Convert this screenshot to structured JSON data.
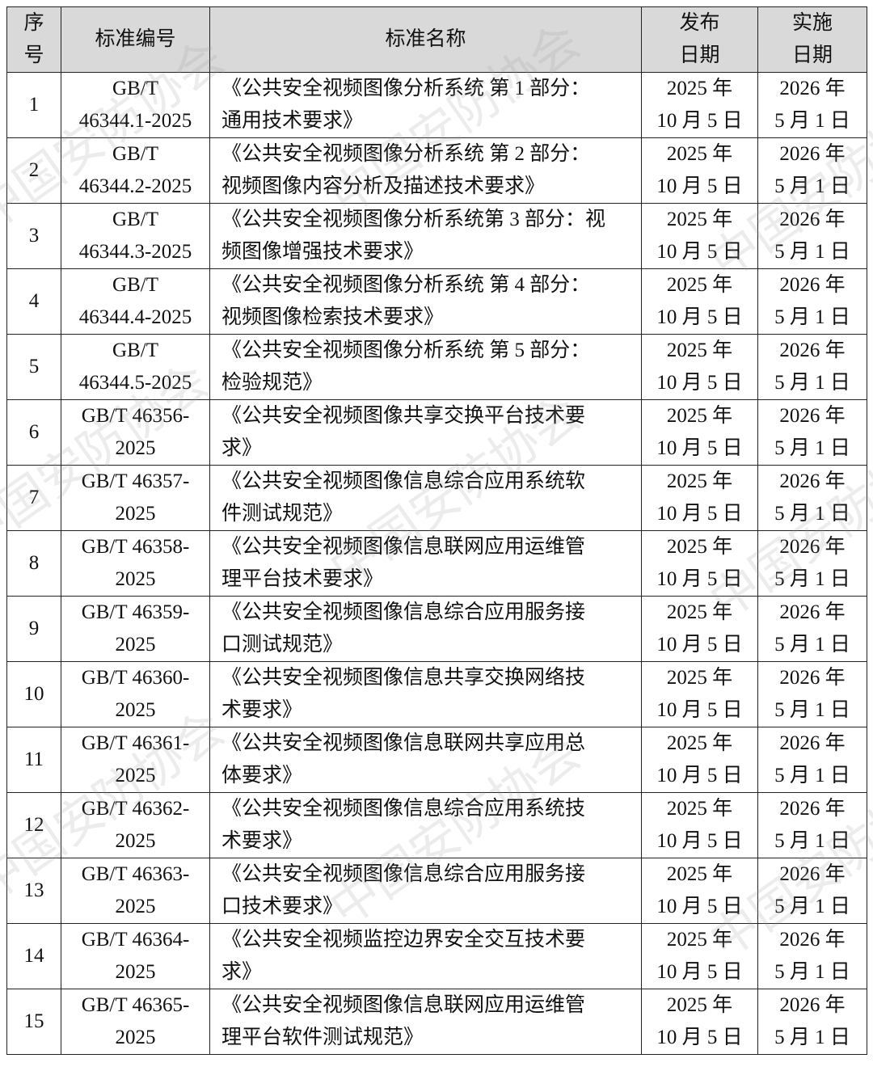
{
  "watermark": "中国安防协会",
  "header": {
    "index": [
      "序",
      "号"
    ],
    "code": "标准编号",
    "name": "标准名称",
    "publish": [
      "发布",
      "日期"
    ],
    "effective": [
      "实施",
      "日期"
    ]
  },
  "rows": [
    {
      "no": "1",
      "code": [
        "GB/T",
        "46344.1-2025"
      ],
      "name": [
        "《公共安全视频图像分析系统  第 1 部分：",
        "通用技术要求》"
      ],
      "publish": [
        "2025 年",
        "10 月 5 日"
      ],
      "effective": [
        "2026 年",
        "5 月 1 日"
      ]
    },
    {
      "no": "2",
      "code": [
        "GB/T",
        "46344.2-2025"
      ],
      "name": [
        "《公共安全视频图像分析系统  第 2 部分：",
        "视频图像内容分析及描述技术要求》"
      ],
      "publish": [
        "2025 年",
        "10 月 5 日"
      ],
      "effective": [
        "2026 年",
        "5 月 1 日"
      ]
    },
    {
      "no": "3",
      "code": [
        "GB/T",
        "46344.3-2025"
      ],
      "name": [
        "《公共安全视频图像分析系统第 3 部分：视",
        "频图像增强技术要求》"
      ],
      "publish": [
        "2025 年",
        "10 月 5 日"
      ],
      "effective": [
        "2026 年",
        "5 月 1 日"
      ]
    },
    {
      "no": "4",
      "code": [
        "GB/T",
        "46344.4-2025"
      ],
      "name": [
        "《公共安全视频图像分析系统  第 4 部分：",
        "视频图像检索技术要求》"
      ],
      "publish": [
        "2025 年",
        "10 月 5 日"
      ],
      "effective": [
        "2026 年",
        "5 月 1 日"
      ]
    },
    {
      "no": "5",
      "code": [
        "GB/T",
        "46344.5-2025"
      ],
      "name": [
        "《公共安全视频图像分析系统  第 5 部分：",
        "检验规范》"
      ],
      "publish": [
        "2025 年",
        "10 月 5 日"
      ],
      "effective": [
        "2026 年",
        "5 月 1 日"
      ]
    },
    {
      "no": "6",
      "code": [
        "GB/T 46356-",
        "2025"
      ],
      "name": [
        "《公共安全视频图像共享交换平台技术要",
        "求》"
      ],
      "publish": [
        "2025 年",
        "10 月 5 日"
      ],
      "effective": [
        "2026 年",
        "5 月 1 日"
      ]
    },
    {
      "no": "7",
      "code": [
        "GB/T 46357-",
        "2025"
      ],
      "name": [
        "《公共安全视频图像信息综合应用系统软",
        "件测试规范》"
      ],
      "publish": [
        "2025 年",
        "10 月 5 日"
      ],
      "effective": [
        "2026 年",
        "5 月 1 日"
      ]
    },
    {
      "no": "8",
      "code": [
        "GB/T 46358-",
        "2025"
      ],
      "name": [
        "《公共安全视频图像信息联网应用运维管",
        "理平台技术要求》"
      ],
      "publish": [
        "2025 年",
        "10 月 5 日"
      ],
      "effective": [
        "2026 年",
        "5 月 1 日"
      ]
    },
    {
      "no": "9",
      "code": [
        "GB/T 46359-",
        "2025"
      ],
      "name": [
        "《公共安全视频图像信息综合应用服务接",
        "口测试规范》"
      ],
      "publish": [
        "2025 年",
        "10 月 5 日"
      ],
      "effective": [
        "2026 年",
        "5 月 1 日"
      ]
    },
    {
      "no": "10",
      "code": [
        "GB/T 46360-",
        "2025"
      ],
      "name": [
        "《公共安全视频图像信息共享交换网络技",
        "术要求》"
      ],
      "publish": [
        "2025 年",
        "10 月 5 日"
      ],
      "effective": [
        "2026 年",
        "5 月 1 日"
      ]
    },
    {
      "no": "11",
      "code": [
        "GB/T 46361-",
        "2025"
      ],
      "name": [
        "《公共安全视频图像信息联网共享应用总",
        "体要求》"
      ],
      "publish": [
        "2025 年",
        "10 月 5 日"
      ],
      "effective": [
        "2026 年",
        "5 月 1 日"
      ]
    },
    {
      "no": "12",
      "code": [
        "GB/T 46362-",
        "2025"
      ],
      "name": [
        "《公共安全视频图像信息综合应用系统技",
        "术要求》"
      ],
      "publish": [
        "2025 年",
        "10 月 5 日"
      ],
      "effective": [
        "2026 年",
        "5 月 1 日"
      ]
    },
    {
      "no": "13",
      "code": [
        "GB/T 46363-",
        "2025"
      ],
      "name": [
        "《公共安全视频图像信息综合应用服务接",
        "口技术要求》"
      ],
      "publish": [
        "2025 年",
        "10 月 5 日"
      ],
      "effective": [
        "2026 年",
        "5 月 1 日"
      ]
    },
    {
      "no": "14",
      "code": [
        "GB/T 46364-",
        "2025"
      ],
      "name": [
        "《公共安全视频监控边界安全交互技术要",
        "求》"
      ],
      "publish": [
        "2025 年",
        "10 月 5 日"
      ],
      "effective": [
        "2026 年",
        "5 月 1 日"
      ]
    },
    {
      "no": "15",
      "code": [
        "GB/T 46365-",
        "2025"
      ],
      "name": [
        "《公共安全视频图像信息联网应用运维管",
        "理平台软件测试规范》"
      ],
      "publish": [
        "2025 年",
        "10 月 5 日"
      ],
      "effective": [
        "2026 年",
        "5 月 1 日"
      ]
    }
  ]
}
